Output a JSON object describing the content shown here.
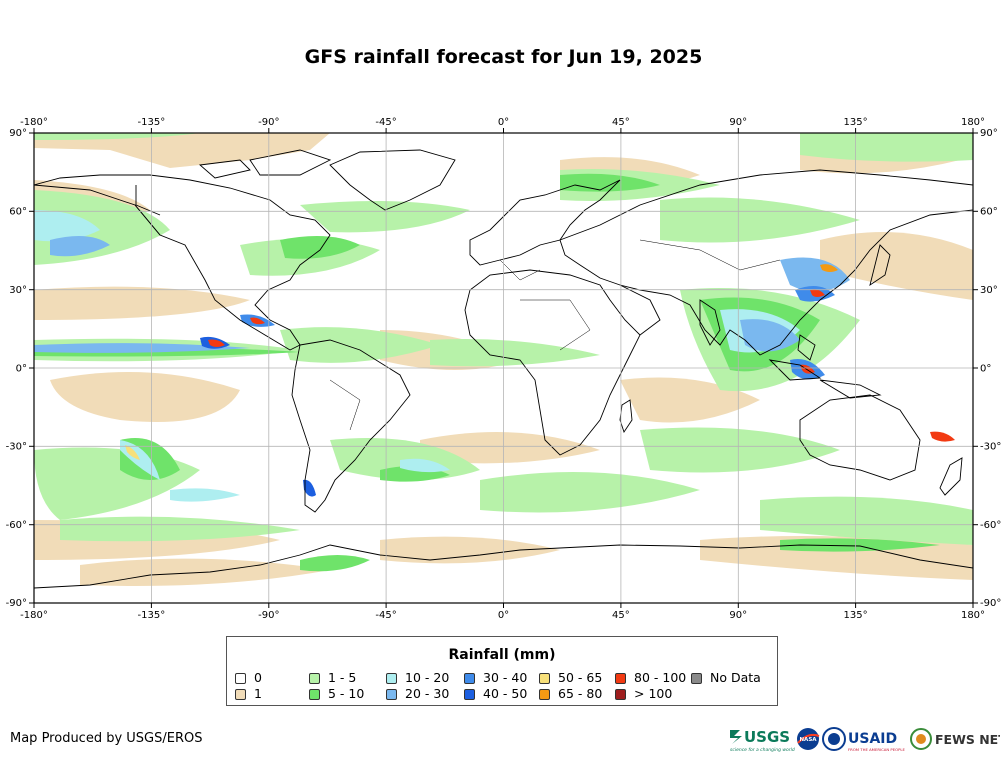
{
  "title": "GFS rainfall forecast for Jun 19, 2025",
  "axes": {
    "lon_top": [
      "-180°",
      "-135°",
      "-90°",
      "-45°",
      "0°",
      "45°",
      "90°",
      "135°",
      "180°"
    ],
    "lon_bottom": [
      "-180°",
      "-135°",
      "-90°",
      "-45°",
      "0°",
      "45°",
      "90°",
      "135°",
      "180°"
    ],
    "lat_left": [
      "90°",
      "60°",
      "30°",
      "0°",
      "-30°",
      "-60°",
      "-90°"
    ],
    "lat_right": [
      "90°",
      "60°",
      "30°",
      "0°",
      "-30°",
      "-60°",
      "-90°"
    ]
  },
  "legend": {
    "title": "Rainfall (mm)",
    "items": [
      {
        "label": "0",
        "color": "#ffffff"
      },
      {
        "label": "1",
        "color": "#f1dcb8"
      },
      {
        "label": "1 - 5",
        "color": "#b7f2a9"
      },
      {
        "label": "5 - 10",
        "color": "#6fe36a"
      },
      {
        "label": "10 - 20",
        "color": "#aeeef0"
      },
      {
        "label": "20 - 30",
        "color": "#7ab8ef"
      },
      {
        "label": "30 - 40",
        "color": "#3f8bea"
      },
      {
        "label": "40 - 50",
        "color": "#1c5fe0"
      },
      {
        "label": "50 - 65",
        "color": "#f7e07a"
      },
      {
        "label": "65 - 80",
        "color": "#f39a13"
      },
      {
        "label": "80 - 100",
        "color": "#f23a12"
      },
      {
        "label": "> 100",
        "color": "#9e1e1e"
      },
      {
        "label": "No Data",
        "color": "#8a8a8a"
      }
    ]
  },
  "credit": "Map Produced by USGS/EROS",
  "logos": {
    "usgs": "USGS",
    "usgs_tagline": "science for a changing world",
    "nasa": "NASA",
    "usaid": "USAID",
    "usaid_tagline": "FROM THE AMERICAN PEOPLE",
    "fewsnet": "FEWS NET"
  },
  "colors": {
    "ocean": "#ffffff",
    "land_outline": "#000000",
    "grid": "#b5b5b5",
    "frame": "#000000"
  }
}
